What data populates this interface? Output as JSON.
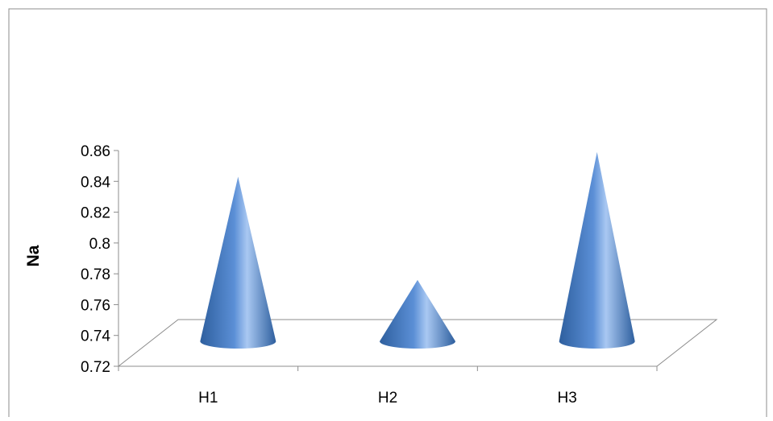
{
  "chart_data": {
    "type": "bar",
    "bar_shape": "cone-3d",
    "categories": [
      "H1",
      "H2",
      "H3"
    ],
    "values": [
      0.842,
      0.775,
      0.858
    ],
    "title": "",
    "xlabel": "",
    "ylabel": "Na",
    "ylim": [
      0.72,
      0.86
    ],
    "yticks": [
      "0.72",
      "0.74",
      "0.76",
      "0.78",
      "0.8",
      "0.82",
      "0.84",
      "0.86"
    ],
    "grid": false,
    "legend": "none",
    "colors": {
      "cone_dark": "#2e5f9e",
      "cone_mid": "#5b8fd6",
      "cone_light": "#a9c8f2",
      "axis": "#8c8c8c"
    }
  }
}
